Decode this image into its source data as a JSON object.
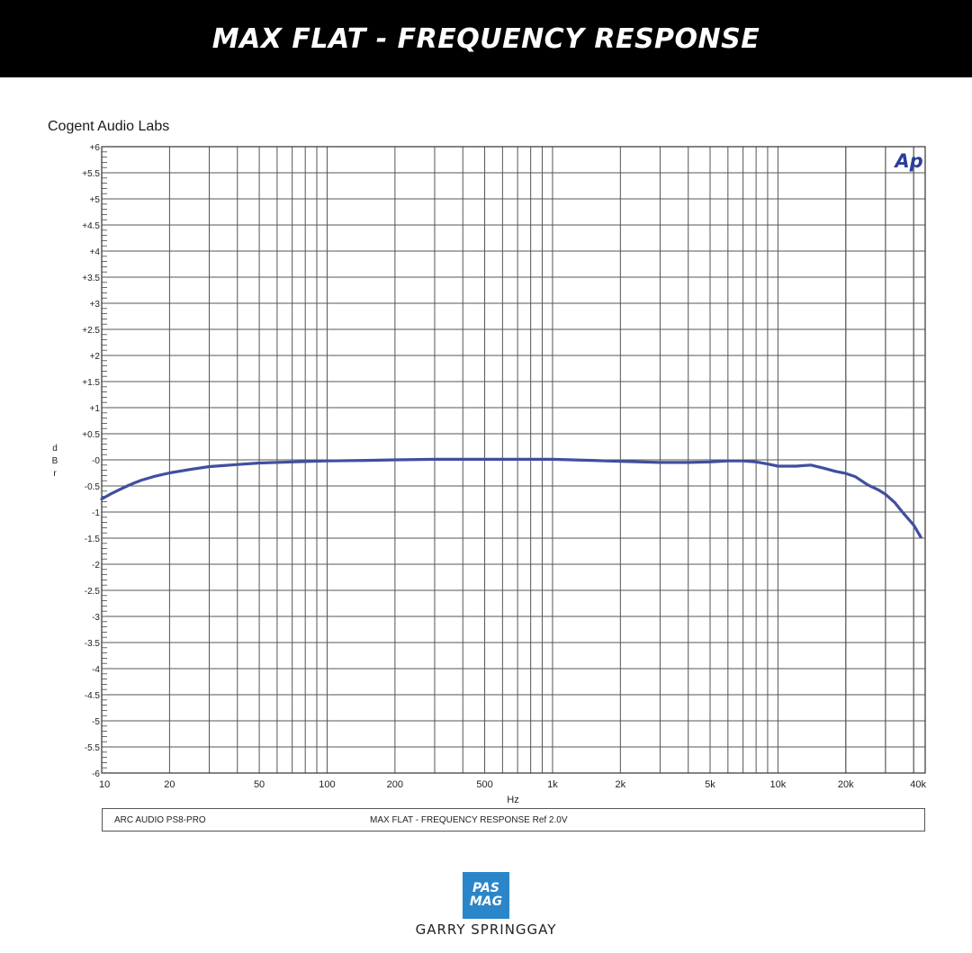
{
  "banner": {
    "title": "MAX FLAT - FREQUENCY RESPONSE"
  },
  "lab_name": "Cogent Audio Labs",
  "ap_logo": "Ap",
  "legend": {
    "device": "ARC AUDIO  PS8-PRO",
    "description": "MAX FLAT -   FREQUENCY RESPONSE     Ref 2.0V"
  },
  "brand_logo": {
    "line1": "PAS",
    "line2": "MAG",
    "color": "#2a86c9"
  },
  "author": "GARRY SPRINGGAY",
  "chart_data": {
    "type": "line",
    "title": "",
    "xlabel": "Hz",
    "ylabel": "d B r",
    "xscale": "log",
    "xlim": [
      10,
      45000
    ],
    "ylim": [
      -6,
      6
    ],
    "grid": true,
    "x_ticks": [
      {
        "value": 10,
        "label": "10"
      },
      {
        "value": 20,
        "label": "20"
      },
      {
        "value": 50,
        "label": "50"
      },
      {
        "value": 100,
        "label": "100"
      },
      {
        "value": 200,
        "label": "200"
      },
      {
        "value": 500,
        "label": "500"
      },
      {
        "value": 1000,
        "label": "1k"
      },
      {
        "value": 2000,
        "label": "2k"
      },
      {
        "value": 5000,
        "label": "5k"
      },
      {
        "value": 10000,
        "label": "10k"
      },
      {
        "value": 20000,
        "label": "20k"
      },
      {
        "value": 40000,
        "label": "40k"
      }
    ],
    "y_ticks": [
      {
        "value": 6,
        "label": "+6"
      },
      {
        "value": 5.5,
        "label": "+5.5"
      },
      {
        "value": 5,
        "label": "+5"
      },
      {
        "value": 4.5,
        "label": "+4.5"
      },
      {
        "value": 4,
        "label": "+4"
      },
      {
        "value": 3.5,
        "label": "+3.5"
      },
      {
        "value": 3,
        "label": "+3"
      },
      {
        "value": 2.5,
        "label": "+2.5"
      },
      {
        "value": 2,
        "label": "+2"
      },
      {
        "value": 1.5,
        "label": "+1.5"
      },
      {
        "value": 1,
        "label": "+1"
      },
      {
        "value": 0.5,
        "label": "+0.5"
      },
      {
        "value": 0,
        "label": "-0"
      },
      {
        "value": -0.5,
        "label": "-0.5"
      },
      {
        "value": -1,
        "label": "-1"
      },
      {
        "value": -1.5,
        "label": "-1.5"
      },
      {
        "value": -2,
        "label": "-2"
      },
      {
        "value": -2.5,
        "label": "-2.5"
      },
      {
        "value": -3,
        "label": "-3"
      },
      {
        "value": -3.5,
        "label": "-3.5"
      },
      {
        "value": -4,
        "label": "-4"
      },
      {
        "value": -4.5,
        "label": "-4.5"
      },
      {
        "value": -5,
        "label": "-5"
      },
      {
        "value": -5.5,
        "label": "-5.5"
      },
      {
        "value": -6,
        "label": "-6"
      }
    ],
    "series": [
      {
        "color": "#3f4fa0",
        "x": [
          10,
          11,
          12,
          13,
          14,
          15,
          17,
          20,
          25,
          30,
          40,
          50,
          70,
          100,
          150,
          200,
          300,
          400,
          500,
          700,
          1000,
          1500,
          2000,
          3000,
          4000,
          5000,
          6000,
          7000,
          8000,
          9000,
          10000,
          12000,
          14000,
          16000,
          18000,
          20000,
          22000,
          25000,
          28000,
          30000,
          33000,
          36000,
          40000,
          43000
        ],
        "y": [
          -0.75,
          -0.65,
          -0.57,
          -0.5,
          -0.44,
          -0.39,
          -0.32,
          -0.25,
          -0.18,
          -0.13,
          -0.09,
          -0.06,
          -0.04,
          -0.02,
          -0.01,
          0,
          0.01,
          0.01,
          0.01,
          0.01,
          0.01,
          -0.01,
          -0.03,
          -0.05,
          -0.05,
          -0.04,
          -0.02,
          -0.02,
          -0.04,
          -0.08,
          -0.12,
          -0.12,
          -0.1,
          -0.16,
          -0.22,
          -0.26,
          -0.32,
          -0.48,
          -0.58,
          -0.66,
          -0.82,
          -1.02,
          -1.25,
          -1.48
        ]
      }
    ]
  }
}
